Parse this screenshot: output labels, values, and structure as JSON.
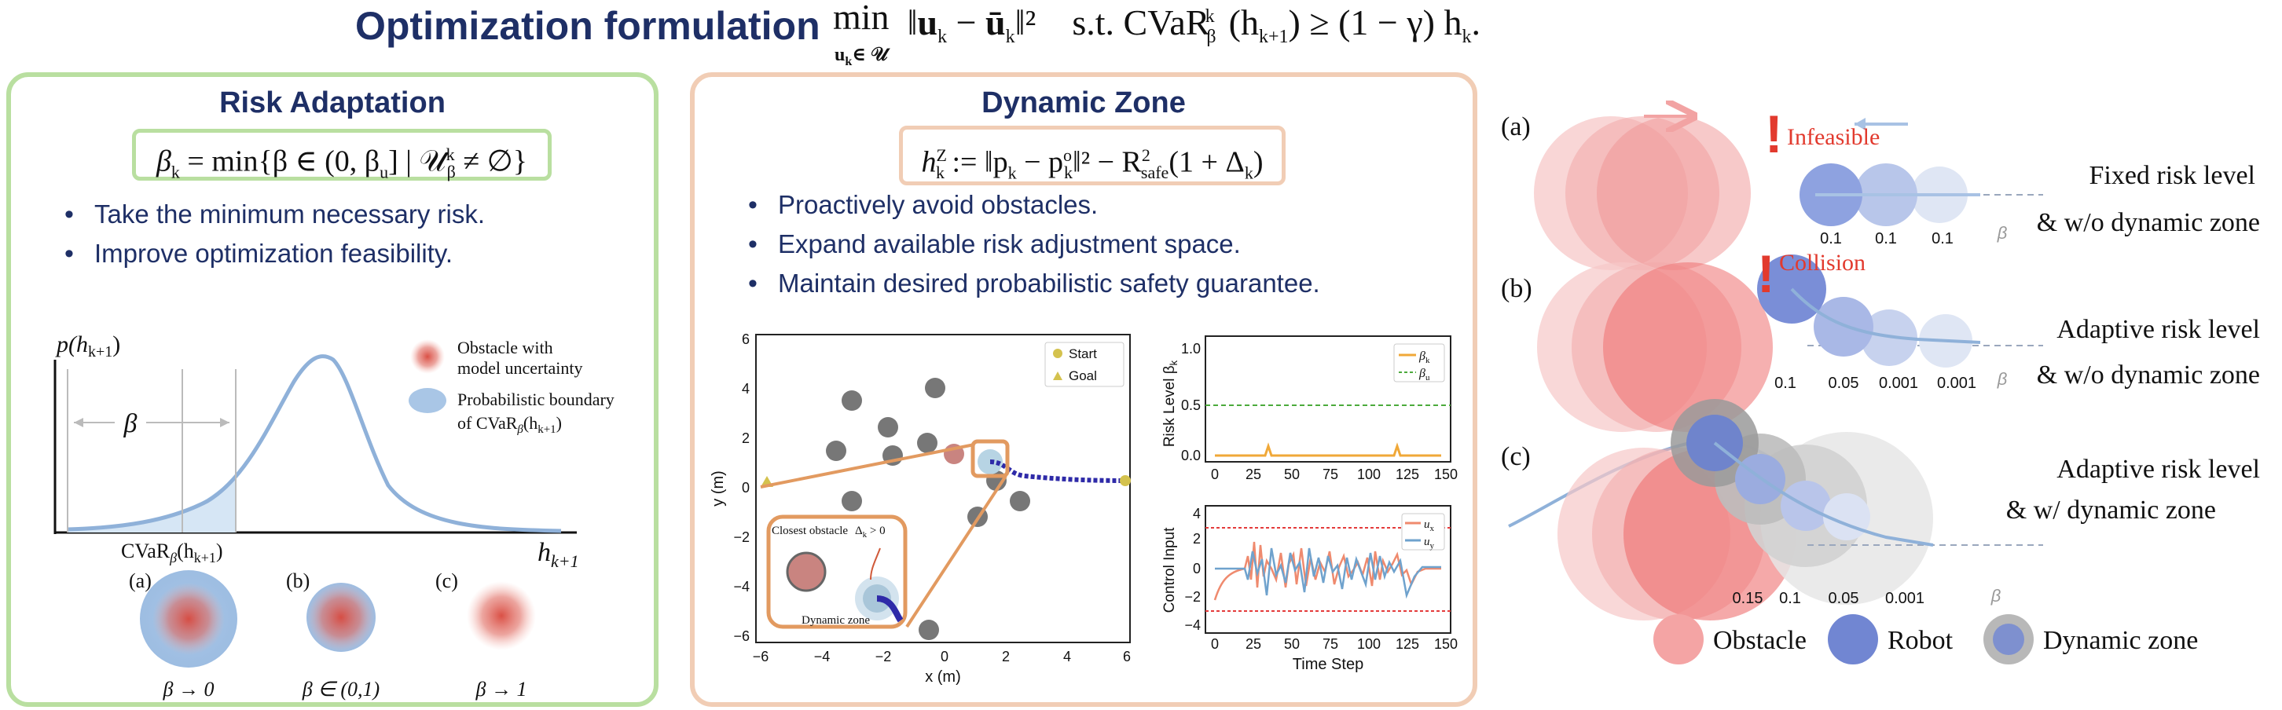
{
  "header": {
    "title": "Optimization formulation",
    "formula_main": "min ‖u",
    "formula_k1": "k",
    "formula_mid": " − ū",
    "formula_k2": "k",
    "formula_tail": "‖² s.t. CVaR",
    "formula_beta": "β",
    "formula_kk": "k",
    "formula_end": "(h",
    "formula_k3": "k+1",
    "formula_close": ") ≥ (1 − γ) h",
    "formula_k4": "k",
    "formula_dot": ".",
    "formula_sub": "u",
    "formula_sub_k": "k",
    "formula_sub_set": "∈ 𝒰"
  },
  "risk": {
    "title": "Risk Adaptation",
    "formula_lhs": "β",
    "formula_lhs_sub": "k",
    "formula_rhs": " = min{β ∈ (0, β",
    "formula_u": "u",
    "formula_set": "] | 𝒰",
    "formula_set_sup": "k",
    "formula_set_sub": "β",
    "formula_end": " ≠ ∅}",
    "bullets": [
      "Take the minimum necessary risk.",
      "Improve optimization feasibility."
    ],
    "y_label": "p(h",
    "y_label_sub": "k+1",
    "y_label_close": ")",
    "beta_label": "β",
    "cvar_label": "CVaR",
    "cvar_sub": "β",
    "cvar_arg": "(h",
    "cvar_arg_sub": "k+1",
    "cvar_close": ")",
    "x_axis_label": "h",
    "x_axis_sub": "k+1",
    "legend_obstacle_1": "Obstacle with",
    "legend_obstacle_2": "model uncertainty",
    "legend_boundary_1": "Probabilistic boundary",
    "legend_boundary_2": "of  CVaR",
    "legend_boundary_sub": "β",
    "legend_boundary_arg": "(h",
    "legend_boundary_arg_sub": "k+1",
    "legend_boundary_close": ")",
    "cases": [
      {
        "tag": "(a)",
        "caption": "β → 0"
      },
      {
        "tag": "(b)",
        "caption": "β ∈ (0,1)"
      },
      {
        "tag": "(c)",
        "caption": "β → 1"
      }
    ]
  },
  "zone": {
    "title": "Dynamic Zone",
    "formula_h": "h",
    "formula_h_sup": "Z",
    "formula_h_sub": "k",
    "formula_def": " := ‖p",
    "formula_pk": "k",
    "formula_minus": " − p",
    "formula_po_sup": "o",
    "formula_po_sub": "k",
    "formula_sq": "‖² − R",
    "formula_r_sup": "2",
    "formula_r_sub": "safe",
    "formula_end": "(1 + Δ",
    "formula_dk": "k",
    "formula_close": ")",
    "bullets": [
      "Proactively avoid obstacles.",
      "Expand available risk adjustment space.",
      "Maintain desired probabilistic safety guarantee."
    ],
    "map": {
      "xlabel": "x (m)",
      "ylabel": "y (m)",
      "xticks": [
        "−6",
        "−4",
        "−2",
        "0",
        "2",
        "4",
        "6"
      ],
      "yticks": [
        "6",
        "4",
        "2",
        "0",
        "−2",
        "−4",
        "−6"
      ],
      "legend_start": "Start",
      "legend_goal": "Goal",
      "inset_title": "Closest obstacle",
      "inset_delta": "Δ",
      "inset_delta_sub": "k",
      "inset_delta_rel": " > 0",
      "inset_caption": "Dynamic zone"
    },
    "risk_plot": {
      "ylabel": "Risk Level β",
      "ylabel_sub": "k",
      "yticks": [
        "1.0",
        "0.5",
        "0.0"
      ],
      "xticks": [
        "0",
        "25",
        "50",
        "75",
        "100",
        "125",
        "150"
      ],
      "legend_bk": "β",
      "legend_bk_sub": "k",
      "legend_bu": "β",
      "legend_bu_sub": "u"
    },
    "control_plot": {
      "ylabel": "Control Input",
      "xlabel": "Time Step",
      "yticks": [
        "4",
        "2",
        "0",
        "−2",
        "−4"
      ],
      "xticks": [
        "0",
        "25",
        "50",
        "75",
        "100",
        "125",
        "150"
      ],
      "legend_ux": "u",
      "legend_ux_sub": "x",
      "legend_uy": "u",
      "legend_uy_sub": "y"
    }
  },
  "scenarios": {
    "a": {
      "tag": "(a)",
      "alert": "Infeasible",
      "betas": [
        "0.1",
        "0.1",
        "0.1"
      ],
      "beta_symbol": "β",
      "label_1": "Fixed risk level",
      "label_2": "& w/o dynamic zone"
    },
    "b": {
      "tag": "(b)",
      "alert": "Collision",
      "betas": [
        "0.1",
        "0.05",
        "0.001",
        "0.001"
      ],
      "beta_symbol": "β",
      "label_1": "Adaptive risk level",
      "label_2": "& w/o dynamic zone"
    },
    "c": {
      "tag": "(c)",
      "betas": [
        "0.15",
        "0.1",
        "0.05",
        "0.001"
      ],
      "beta_symbol": "β",
      "label_1": "Adaptive risk level",
      "label_2": "& w/ dynamic zone"
    },
    "legend": {
      "obstacle": "Obstacle",
      "robot": "Robot",
      "dynamic_zone": "Dynamic zone"
    }
  },
  "colors": {
    "navy": "#1e2f66",
    "green_border": "#b9dfa0",
    "peach_border": "#f1cdb5",
    "obstacle_red": "#ee5a5a",
    "robot_blue": "#5b78c9",
    "alert_red": "#e23a2e",
    "curve_blue": "#8fb1d9"
  }
}
